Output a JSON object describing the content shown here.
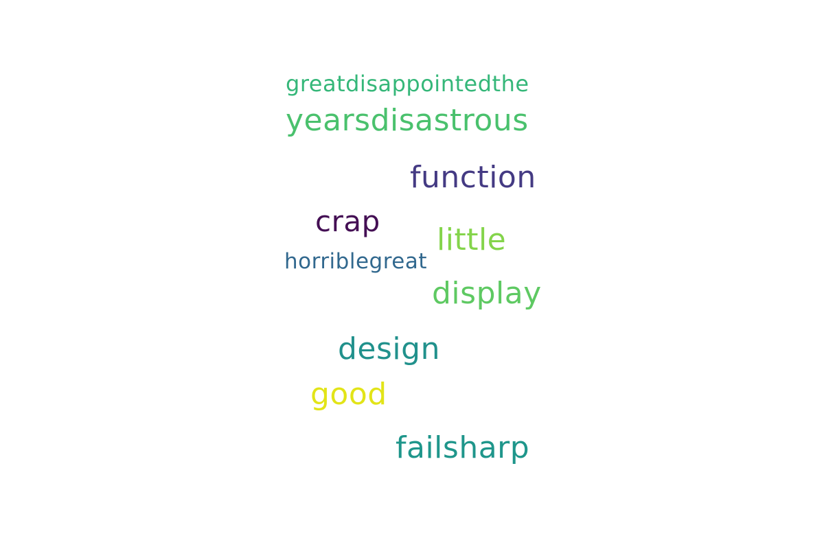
{
  "words": [
    {
      "text": "greatdisappointedthe",
      "color": "#35b779"
    },
    {
      "text": "yearsdisastrous",
      "color": "#4ac16d"
    },
    {
      "text": "function",
      "color": "#443a83"
    },
    {
      "text": "crap",
      "color": "#440f54"
    },
    {
      "text": "little",
      "color": "#84d44b"
    },
    {
      "text": "horriblegreat",
      "color": "#31688e"
    },
    {
      "text": "display",
      "color": "#5ec962"
    },
    {
      "text": "design",
      "color": "#21918c"
    },
    {
      "text": "good",
      "color": "#e2e418"
    },
    {
      "text": "failsharp",
      "color": "#1f968b"
    }
  ]
}
